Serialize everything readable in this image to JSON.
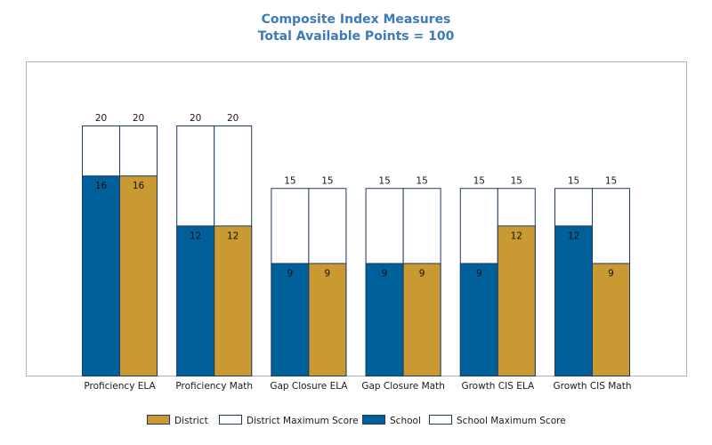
{
  "header": {
    "title": "Composite Index Measures",
    "subtitle": "Total Available Points = 100"
  },
  "chart_data": {
    "type": "bar",
    "title": "Composite Index Measures",
    "subtitle": "Total Available Points = 100",
    "categories": [
      "Proficiency ELA",
      "Proficiency Math",
      "Gap Closure ELA",
      "Gap Closure Math",
      "Growth CIS ELA",
      "Growth CIS Math"
    ],
    "series": [
      {
        "name": "School",
        "values": [
          16,
          12,
          9,
          9,
          9,
          12
        ],
        "color": "#00609a"
      },
      {
        "name": "District",
        "values": [
          16,
          12,
          9,
          9,
          12,
          9
        ],
        "color": "#c99a32"
      },
      {
        "name": "School Maximum Score",
        "values": [
          20,
          20,
          15,
          15,
          15,
          15
        ],
        "color": "#ffffff"
      },
      {
        "name": "District Maximum Score",
        "values": [
          20,
          20,
          15,
          15,
          15,
          15
        ],
        "color": "#ffffff"
      }
    ],
    "ylim": [
      0,
      25
    ],
    "grid": false,
    "legend_position": "bottom",
    "legend": [
      {
        "label": "District",
        "color": "#c99a32"
      },
      {
        "label": "District Maximum Score",
        "color": "#ffffff"
      },
      {
        "label": "School",
        "color": "#00609a"
      },
      {
        "label": "School Maximum Score",
        "color": "#ffffff"
      }
    ]
  }
}
